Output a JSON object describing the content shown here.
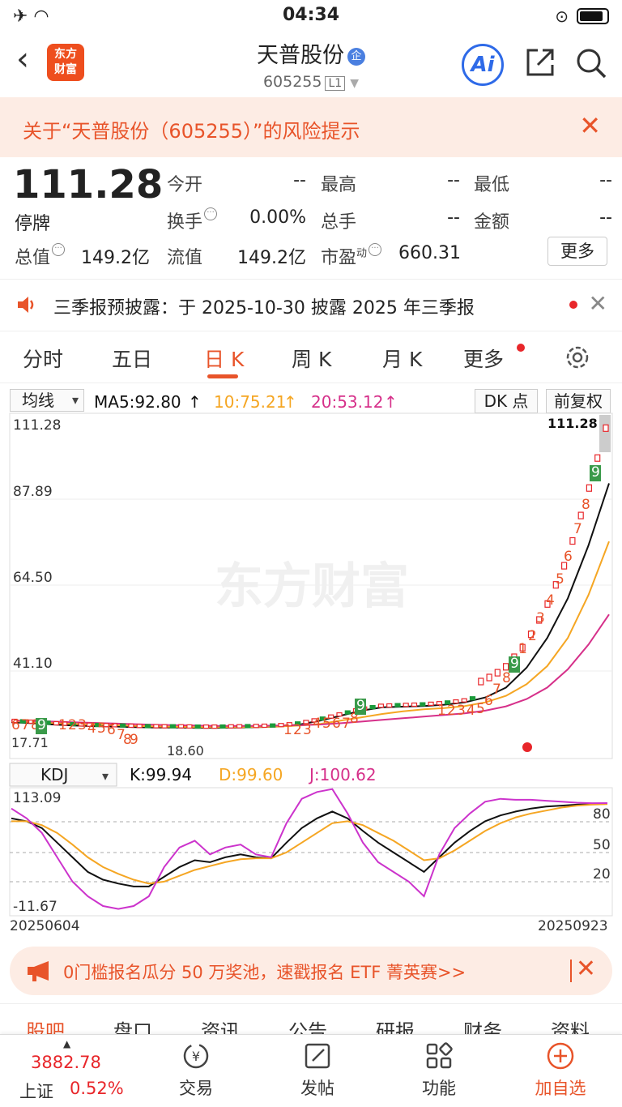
{
  "status_bar": {
    "time": "04:34"
  },
  "header": {
    "back_label": "‹",
    "logo_text_1": "东方",
    "logo_text_2": "财富",
    "title": "天普股份",
    "badge": "企",
    "code": "605255",
    "level": "L1",
    "ai_label": "Ai"
  },
  "risk_banner": {
    "text": "关于“天普股份（605255）”的风险提示",
    "close": "✕"
  },
  "quote": {
    "price": "111.28",
    "status": "停牌",
    "rows": [
      {
        "label": "今开",
        "value": "--"
      },
      {
        "label": "最高",
        "value": "--"
      },
      {
        "label": "最低",
        "value": "--"
      },
      {
        "label": "换手",
        "value": "0.00%"
      },
      {
        "label": "总手",
        "value": "--"
      },
      {
        "label": "金额",
        "value": "--"
      },
      {
        "label": "总值",
        "value": "149.2亿"
      },
      {
        "label": "流值",
        "value": "149.2亿"
      },
      {
        "label": "市盈",
        "sup": "动",
        "value": "660.31"
      }
    ],
    "more_label": "更多"
  },
  "notice": {
    "text": "三季报预披露：于 2025-10-30 披露 2025 年三季报",
    "close": "✕"
  },
  "tabs": [
    {
      "label": "分时"
    },
    {
      "label": "五日"
    },
    {
      "label": "日 K",
      "active": true
    },
    {
      "label": "周 K"
    },
    {
      "label": "月 K"
    },
    {
      "label": "更多"
    }
  ],
  "ma_bar": {
    "selector": "均线",
    "ma5": "MA5:92.80",
    "ma10": "10:75.21",
    "ma20": "20:53.12",
    "dk_label": "DK 点",
    "adjust_label": "前复权"
  },
  "colors": {
    "ma5": "#111111",
    "ma10": "#f5a623",
    "ma20": "#d6308a",
    "up": "#e8262a",
    "down": "#1a9a3a",
    "accent": "#e8542a"
  },
  "chart_data": {
    "type": "line",
    "price_axis": {
      "ticks": [
        "111.28",
        "87.89",
        "64.50",
        "41.10"
      ],
      "min_label": "17.71",
      "low_label": "18.60",
      "last_label": "111.28"
    },
    "watermark": "东方财富",
    "series": [
      {
        "name": "MA5",
        "values": [
          20.5,
          20.2,
          19.8,
          19.5,
          19.3,
          19.2,
          19.0,
          18.9,
          18.9,
          18.8,
          18.8,
          18.9,
          19.0,
          19.2,
          19.8,
          21.0,
          22.5,
          24.0,
          25.0,
          25.2,
          25.4,
          25.8,
          26.5,
          28.0,
          31.0,
          37.0,
          46.0,
          58.0,
          74.0,
          92.8
        ]
      },
      {
        "name": "MA10",
        "values": [
          20.8,
          20.6,
          20.3,
          20.0,
          19.8,
          19.6,
          19.4,
          19.2,
          19.1,
          19.0,
          19.0,
          19.0,
          19.1,
          19.2,
          19.5,
          20.0,
          21.0,
          22.0,
          23.0,
          23.8,
          24.4,
          24.8,
          25.4,
          26.5,
          28.5,
          32.0,
          37.5,
          46.0,
          59.0,
          75.21
        ]
      },
      {
        "name": "MA20",
        "values": [
          21.0,
          20.9,
          20.7,
          20.5,
          20.3,
          20.1,
          19.9,
          19.7,
          19.6,
          19.5,
          19.4,
          19.4,
          19.4,
          19.5,
          19.6,
          19.8,
          20.2,
          20.7,
          21.2,
          21.7,
          22.2,
          22.7,
          23.2,
          24.0,
          25.3,
          27.5,
          31.0,
          36.5,
          44.0,
          53.12
        ]
      }
    ],
    "kdj": {
      "selector": "KDJ",
      "k": "K:99.94",
      "d": "D:99.60",
      "j": "J:100.62",
      "ticks_left": [
        "113.09",
        "-11.67"
      ],
      "ticks_right": [
        "80",
        "50",
        "20"
      ],
      "start_date": "20250604",
      "end_date": "20250923"
    }
  },
  "promo": {
    "text": "0门槛报名瓜分 50 万奖池，速戳报名 ETF 菁英赛>>",
    "close": "✕"
  },
  "sub_tabs": [
    "股吧",
    "盘口",
    "资讯",
    "公告",
    "研报",
    "财务",
    "资料"
  ],
  "bottom_nav": {
    "index_value": "3882.78",
    "index_name": "上证",
    "index_pct": "0.52%",
    "items": [
      {
        "label": "交易"
      },
      {
        "label": "发帖"
      },
      {
        "label": "功能"
      },
      {
        "label": "加自选"
      }
    ]
  }
}
